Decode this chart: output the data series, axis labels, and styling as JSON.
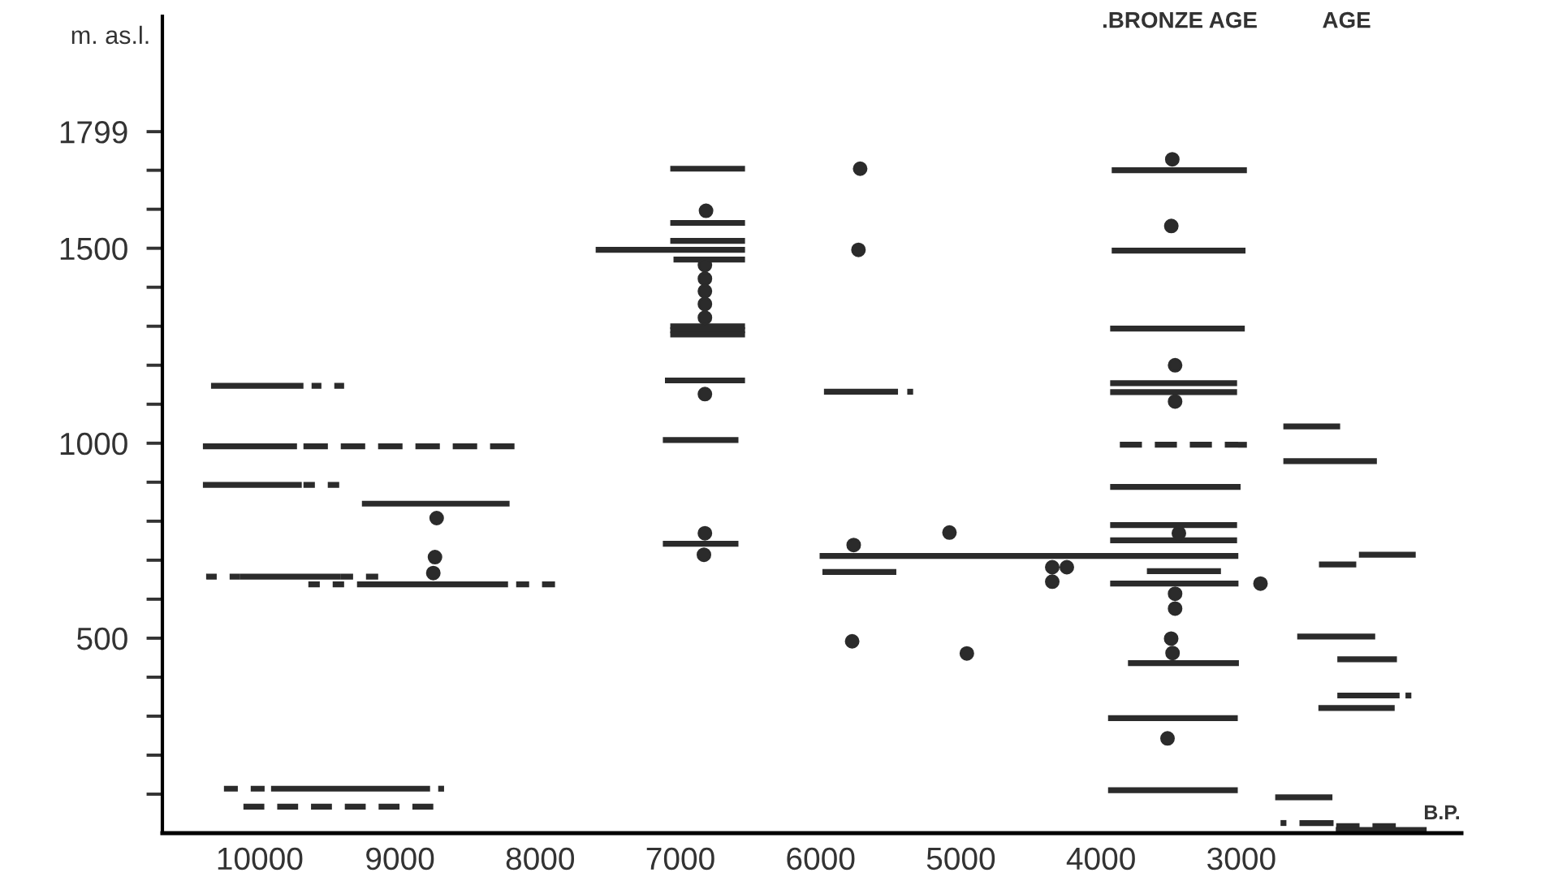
{
  "chart_data": {
    "type": "line",
    "xlabel": "B.P.",
    "ylabel": "m. as.l.",
    "color": "#2b2b2b",
    "line_style": "solid",
    "marker": "none",
    "grid": false,
    "annotations": [
      ".BRONZE AGE",
      "AGE"
    ],
    "xlim": [
      10694,
      1430
    ],
    "ylim": [
      0,
      2095
    ],
    "xticks": [
      10000,
      9000,
      8000,
      7000,
      6000,
      5000,
      4000,
      3000
    ],
    "yticks": [
      {
        "value": 100,
        "label": null
      },
      {
        "value": 200,
        "label": null
      },
      {
        "value": 300,
        "label": null
      },
      {
        "value": 400,
        "label": null
      },
      500,
      {
        "value": 600,
        "label": null
      },
      {
        "value": 700,
        "label": null
      },
      {
        "value": 800,
        "label": null
      },
      {
        "value": 900,
        "label": null
      },
      1000,
      {
        "value": 1100,
        "label": null
      },
      {
        "value": 1200,
        "label": null
      },
      {
        "value": 1300,
        "label": null
      },
      {
        "value": 1400,
        "label": null
      },
      1500,
      {
        "value": 1600,
        "label": null
      },
      {
        "value": 1700,
        "label": null
      },
      1799
    ],
    "series": [
      {
        "x": [
          10347,
          9688
        ],
        "values": [
          1147,
          1147
        ]
      },
      {
        "x": [
          9630,
          9398
        ],
        "values": [
          1147,
          1147
        ],
        "line_style": "dashed"
      },
      {
        "x": [
          10405,
          9734
        ],
        "values": [
          992,
          992
        ]
      },
      {
        "x": [
          9688,
          8183
        ],
        "values": [
          992,
          992
        ],
        "line_style": "dashed"
      },
      {
        "x": [
          10405,
          9700
        ],
        "values": [
          893,
          893
        ]
      },
      {
        "x": [
          9688,
          9433
        ],
        "values": [
          893,
          893
        ],
        "line_style": "dashed"
      },
      {
        "x": [
          9271,
          8218
        ],
        "values": [
          845,
          845
        ]
      },
      {
        "x": [
          10382,
          10139
        ],
        "values": [
          658,
          658
        ],
        "line_style": "dashed"
      },
      {
        "x": [
          10139,
          9421
        ],
        "values": [
          658,
          658
        ]
      },
      {
        "x": [
          9421,
          9155
        ],
        "values": [
          658,
          658
        ],
        "line_style": "dashed"
      },
      {
        "x": [
          9653,
          9398
        ],
        "values": [
          638,
          638
        ],
        "line_style": "dashed"
      },
      {
        "x": [
          9306,
          8229
        ],
        "values": [
          638,
          638
        ]
      },
      {
        "x": [
          8171,
          7894
        ],
        "values": [
          638,
          638
        ],
        "line_style": "dashed"
      },
      {
        "x": [
          10255,
          9965
        ],
        "values": [
          114,
          114
        ],
        "line_style": "dashed"
      },
      {
        "x": [
          9919,
          8785
        ],
        "values": [
          114,
          114
        ]
      },
      {
        "x": [
          8727,
          8634
        ],
        "values": [
          114,
          114
        ],
        "line_style": "dashed"
      },
      {
        "x": [
          10116,
          8762
        ],
        "values": [
          68,
          68
        ],
        "line_style": "dashed"
      },
      {
        "x": [
          7072,
          6539
        ],
        "values": [
          1704,
          1704
        ]
      },
      {
        "x": [
          7072,
          6539
        ],
        "values": [
          1565,
          1565
        ]
      },
      {
        "x": [
          7072,
          6539
        ],
        "values": [
          1519,
          1519
        ]
      },
      {
        "x": [
          7604,
          6539
        ],
        "values": [
          1496,
          1496
        ]
      },
      {
        "x": [
          7049,
          6539
        ],
        "values": [
          1471,
          1471
        ]
      },
      {
        "x": [
          7072,
          6539
        ],
        "values": [
          1300,
          1300
        ]
      },
      {
        "x": [
          7072,
          6539
        ],
        "values": [
          1290,
          1290
        ]
      },
      {
        "x": [
          7072,
          6539
        ],
        "values": [
          1279,
          1279
        ]
      },
      {
        "x": [
          7110,
          6539
        ],
        "values": [
          1161,
          1161
        ]
      },
      {
        "x": [
          7125,
          6586
        ],
        "values": [
          1008,
          1008
        ]
      },
      {
        "x": [
          7125,
          6586
        ],
        "values": [
          742,
          742
        ]
      },
      {
        "x": [
          5976,
          5448
        ],
        "values": [
          1132,
          1132
        ]
      },
      {
        "x": [
          5382,
          5289
        ],
        "values": [
          1132,
          1132
        ],
        "line_style": "dashed"
      },
      {
        "x": [
          6007,
          3021
        ],
        "values": [
          711,
          711
        ]
      },
      {
        "x": [
          5987,
          5460
        ],
        "values": [
          670,
          670
        ]
      },
      {
        "x": [
          3924,
          2960
        ],
        "values": [
          1700,
          1700
        ]
      },
      {
        "x": [
          3924,
          2970
        ],
        "values": [
          1494,
          1494
        ]
      },
      {
        "x": [
          3935,
          2975
        ],
        "values": [
          1294,
          1294
        ]
      },
      {
        "x": [
          3935,
          3030
        ],
        "values": [
          1154,
          1154
        ]
      },
      {
        "x": [
          3935,
          3030
        ],
        "values": [
          1131,
          1131
        ]
      },
      {
        "x": [
          3866,
          2960
        ],
        "values": [
          996,
          996
        ],
        "line_style": "dashed"
      },
      {
        "x": [
          3935,
          3005
        ],
        "values": [
          888,
          888
        ]
      },
      {
        "x": [
          3935,
          3030
        ],
        "values": [
          790,
          790
        ]
      },
      {
        "x": [
          3935,
          3030
        ],
        "values": [
          751,
          751
        ]
      },
      {
        "x": [
          3673,
          3145
        ],
        "values": [
          672,
          672
        ]
      },
      {
        "x": [
          3935,
          3020
        ],
        "values": [
          640,
          640
        ]
      },
      {
        "x": [
          3808,
          3017
        ],
        "values": [
          436,
          436
        ]
      },
      {
        "x": [
          3950,
          3025
        ],
        "values": [
          295,
          295
        ]
      },
      {
        "x": [
          3950,
          3025
        ],
        "values": [
          110,
          110
        ]
      },
      {
        "x": [
          2700,
          2295
        ],
        "values": [
          1043,
          1043
        ]
      },
      {
        "x": [
          2700,
          2033
        ],
        "values": [
          954,
          954
        ]
      },
      {
        "x": [
          2161,
          1756
        ],
        "values": [
          714,
          714
        ]
      },
      {
        "x": [
          2446,
          2180
        ],
        "values": [
          689,
          689
        ]
      },
      {
        "x": [
          2601,
          2045
        ],
        "values": [
          504,
          504
        ]
      },
      {
        "x": [
          2315,
          1890
        ],
        "values": [
          446,
          446
        ]
      },
      {
        "x": [
          2315,
          1871
        ],
        "values": [
          353,
          353
        ]
      },
      {
        "x": [
          1829,
          1744
        ],
        "values": [
          353,
          353
        ],
        "line_style": "dashed"
      },
      {
        "x": [
          2450,
          1906
        ],
        "values": [
          321,
          321
        ]
      },
      {
        "x": [
          2758,
          2350
        ],
        "values": [
          92,
          92
        ]
      },
      {
        "x": [
          2720,
          2639
        ],
        "values": [
          26,
          26
        ],
        "line_style": "dashed"
      },
      {
        "x": [
          2585,
          2342
        ],
        "values": [
          26,
          26
        ]
      },
      {
        "x": [
          2323,
          1898
        ],
        "values": [
          18,
          18
        ],
        "line_style": "dashed"
      },
      {
        "x": [
          2326,
          1678
        ],
        "values": [
          8,
          8
        ]
      },
      {
        "type": "scatter",
        "marker": "circle",
        "x": [
          8738,
          8750,
          8762,
          6817,
          6825,
          6825,
          6825,
          6825,
          6825,
          6825,
          6825,
          6832,
          5718,
          5730,
          5764,
          5775,
          5081,
          4957,
          4348,
          4244,
          4348,
          3492,
          3499,
          3472,
          3472,
          3445,
          2863,
          3472,
          3472,
          3500,
          3490,
          3526
        ],
        "values": [
          808,
          708,
          667,
          1596,
          1457,
          1422,
          1390,
          1357,
          1322,
          1126,
          769,
          714,
          1704,
          1496,
          739,
          492,
          771,
          461,
          682,
          682,
          645,
          1728,
          1557,
          1200,
          1107,
          769,
          640,
          614,
          576,
          499,
          462,
          243
        ]
      }
    ]
  }
}
